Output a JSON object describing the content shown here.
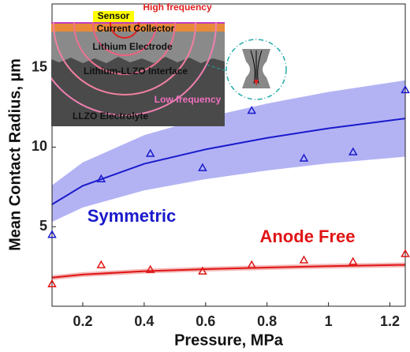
{
  "chart_data": {
    "type": "scatter",
    "x_label": "Pressure, MPa",
    "y_label": "Mean Contact Radius, µm",
    "xlim": [
      0.1,
      1.25
    ],
    "ylim": [
      0,
      19
    ],
    "xticks": [
      0.2,
      0.4,
      0.6,
      0.8,
      1,
      1.2
    ],
    "yticks": [
      5,
      10,
      15
    ],
    "x": [
      0.1,
      0.26,
      0.42,
      0.59,
      0.75,
      0.92,
      1.08,
      1.25
    ],
    "x_fit": [
      0.1,
      0.2,
      0.4,
      0.6,
      0.8,
      1.0,
      1.25
    ],
    "series": [
      {
        "name": "Symmetric",
        "color": "#1a1acc",
        "band_color": "#9a9af0",
        "values": [
          4.5,
          8.0,
          9.6,
          8.7,
          12.3,
          9.3,
          9.7,
          13.6
        ],
        "fit": [
          6.4,
          7.57,
          8.95,
          9.86,
          10.58,
          11.18,
          11.8
        ],
        "lower": [
          5.3,
          6.21,
          7.28,
          7.99,
          8.53,
          8.98,
          9.4
        ],
        "upper": [
          7.6,
          9.04,
          10.75,
          11.86,
          12.74,
          13.47,
          14.2
        ]
      },
      {
        "name": "Anode Free",
        "color": "#e01515",
        "band_color": "#f0a0a0",
        "values": [
          1.4,
          2.6,
          2.3,
          2.2,
          2.6,
          2.9,
          2.8,
          3.3
        ],
        "fit": [
          1.8,
          1.99,
          2.2,
          2.33,
          2.43,
          2.52,
          2.6
        ],
        "lower": [
          1.65,
          1.84,
          2.05,
          2.18,
          2.28,
          2.37,
          2.45
        ],
        "upper": [
          1.95,
          2.14,
          2.35,
          2.48,
          2.58,
          2.67,
          2.75
        ]
      }
    ],
    "inset": {
      "sensor": "Sensor",
      "high": "High frequency",
      "collector": "Current Collector",
      "electrode": "Lithium Electrode",
      "interface": "Lithium-LLZO Interface",
      "low": "Low frequency",
      "electrolyte": "LLZO Electrolyte"
    }
  }
}
